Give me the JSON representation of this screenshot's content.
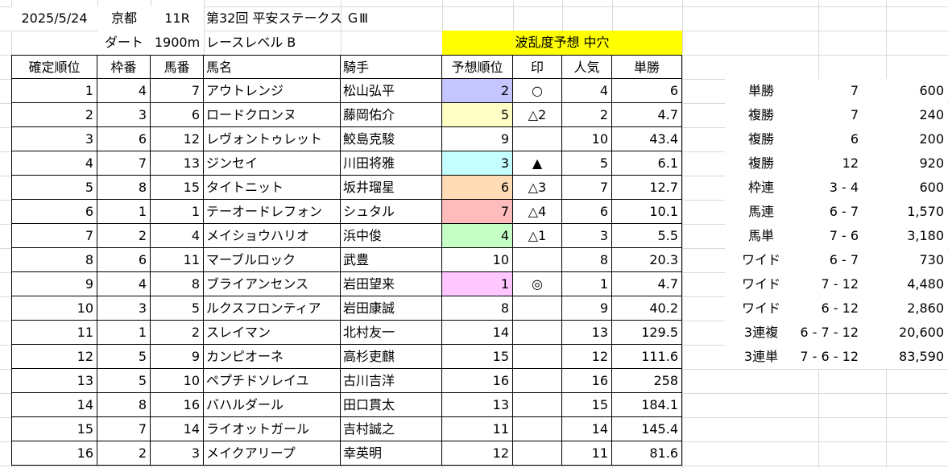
{
  "header": {
    "date": "2025/5/24",
    "venue": "京都",
    "race_no": "11R",
    "race_title": "第32回 平安ステークス ＧⅢ",
    "surface": "ダート",
    "distance": "1900m",
    "race_level": "レースレベル B",
    "forecast": "波乱度予想 中穴"
  },
  "columns": [
    "確定順位",
    "枠番",
    "馬番",
    "馬名",
    "騎手",
    "予想順位",
    "印",
    "人気",
    "単勝"
  ],
  "rows": [
    {
      "finish": "1",
      "waku": "4",
      "umaban": "7",
      "horse": "アウトレンジ",
      "jockey": "松山弘平",
      "pred": "2",
      "mark": "○",
      "pop": "4",
      "odds": "6",
      "color": "#c5c5ff"
    },
    {
      "finish": "2",
      "waku": "3",
      "umaban": "6",
      "horse": "ロードクロンヌ",
      "jockey": "藤岡佑介",
      "pred": "5",
      "mark": "△2",
      "pop": "2",
      "odds": "4.7",
      "color": "#ffffc6"
    },
    {
      "finish": "3",
      "waku": "6",
      "umaban": "12",
      "horse": "レヴォントゥレット",
      "jockey": "鮫島克駿",
      "pred": "9",
      "mark": "",
      "pop": "10",
      "odds": "43.4",
      "color": ""
    },
    {
      "finish": "4",
      "waku": "7",
      "umaban": "13",
      "horse": "ジンセイ",
      "jockey": "川田将雅",
      "pred": "3",
      "mark": "▲",
      "pop": "5",
      "odds": "6.1",
      "color": "#c6ffff"
    },
    {
      "finish": "5",
      "waku": "8",
      "umaban": "15",
      "horse": "タイトニット",
      "jockey": "坂井瑠星",
      "pred": "6",
      "mark": "△3",
      "pop": "7",
      "odds": "12.7",
      "color": "#ffdcb6"
    },
    {
      "finish": "6",
      "waku": "1",
      "umaban": "1",
      "horse": "テーオードレフォン",
      "jockey": "シュタル",
      "pred": "7",
      "mark": "△4",
      "pop": "6",
      "odds": "10.1",
      "color": "#ffbcbc"
    },
    {
      "finish": "7",
      "waku": "2",
      "umaban": "4",
      "horse": "メイショウハリオ",
      "jockey": "浜中俊",
      "pred": "4",
      "mark": "△1",
      "pop": "3",
      "odds": "5.5",
      "color": "#c6ffc6"
    },
    {
      "finish": "8",
      "waku": "6",
      "umaban": "11",
      "horse": "マーブルロック",
      "jockey": "武豊",
      "pred": "10",
      "mark": "",
      "pop": "8",
      "odds": "20.3",
      "color": ""
    },
    {
      "finish": "9",
      "waku": "4",
      "umaban": "8",
      "horse": "ブライアンセンス",
      "jockey": "岩田望来",
      "pred": "1",
      "mark": "◎",
      "pop": "1",
      "odds": "4.7",
      "color": "#ffc6ff"
    },
    {
      "finish": "10",
      "waku": "3",
      "umaban": "5",
      "horse": "ルクスフロンティア",
      "jockey": "岩田康誠",
      "pred": "8",
      "mark": "",
      "pop": "9",
      "odds": "40.2",
      "color": ""
    },
    {
      "finish": "11",
      "waku": "1",
      "umaban": "2",
      "horse": "スレイマン",
      "jockey": "北村友一",
      "pred": "14",
      "mark": "",
      "pop": "13",
      "odds": "129.5",
      "color": ""
    },
    {
      "finish": "12",
      "waku": "5",
      "umaban": "9",
      "horse": "カンピオーネ",
      "jockey": "高杉吏麒",
      "pred": "15",
      "mark": "",
      "pop": "12",
      "odds": "111.6",
      "color": ""
    },
    {
      "finish": "13",
      "waku": "5",
      "umaban": "10",
      "horse": "ペプチドソレイユ",
      "jockey": "古川吉洋",
      "pred": "16",
      "mark": "",
      "pop": "16",
      "odds": "258",
      "color": ""
    },
    {
      "finish": "14",
      "waku": "8",
      "umaban": "16",
      "horse": "バハルダール",
      "jockey": "田口貫太",
      "pred": "13",
      "mark": "",
      "pop": "15",
      "odds": "184.1",
      "color": ""
    },
    {
      "finish": "15",
      "waku": "7",
      "umaban": "14",
      "horse": "ライオットガール",
      "jockey": "吉村誠之",
      "pred": "11",
      "mark": "",
      "pop": "14",
      "odds": "145.4",
      "color": ""
    },
    {
      "finish": "16",
      "waku": "2",
      "umaban": "3",
      "horse": "メイクアリープ",
      "jockey": "幸英明",
      "pred": "12",
      "mark": "",
      "pop": "11",
      "odds": "81.6",
      "color": ""
    }
  ],
  "payouts": [
    {
      "type": "単勝",
      "combo": "7",
      "amount": "600"
    },
    {
      "type": "複勝",
      "combo": "7",
      "amount": "240"
    },
    {
      "type": "複勝",
      "combo": "6",
      "amount": "200"
    },
    {
      "type": "複勝",
      "combo": "12",
      "amount": "920"
    },
    {
      "type": "枠連",
      "combo": "3 - 4",
      "amount": "600"
    },
    {
      "type": "馬連",
      "combo": "6 - 7",
      "amount": "1,570"
    },
    {
      "type": "馬単",
      "combo": "7 - 6",
      "amount": "3,180"
    },
    {
      "type": "ワイド",
      "combo": "6 - 7",
      "amount": "730"
    },
    {
      "type": "ワイド",
      "combo": "7 - 12",
      "amount": "4,480"
    },
    {
      "type": "ワイド",
      "combo": "6 - 12",
      "amount": "2,860"
    },
    {
      "type": "3連複",
      "combo": "6 - 7 - 12",
      "amount": "20,600"
    },
    {
      "type": "3連単",
      "combo": "7 - 6 - 12",
      "amount": "83,590"
    }
  ]
}
